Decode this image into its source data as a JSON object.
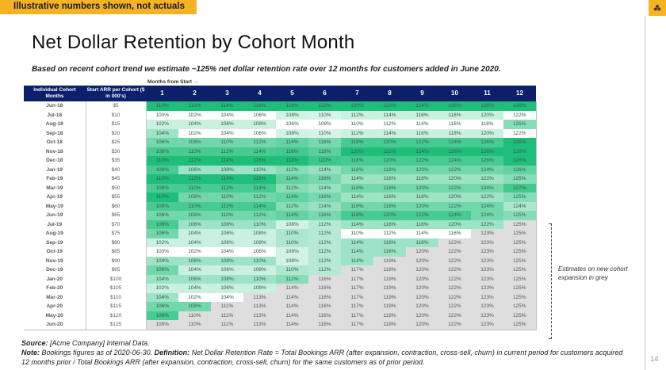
{
  "banner": {
    "text": "Illustrative numbers shown, not actuals"
  },
  "logo": {
    "text": "⁂",
    "icon": "brand-logo-icon"
  },
  "title": "Net Dollar Retention by Cohort Month",
  "subtitle": "Based on recent cohort trend we estimate ~125% net dollar retention rate over 12 months for customers added in June 2020.",
  "months_label": "Months from Start →",
  "colors": {
    "header_bg": "#0b1f6b",
    "banner": "#f5b324",
    "estimate_grey": "#dedede",
    "green_dark": "#1fbf7a",
    "green_light": "#e9f7f0"
  },
  "table": {
    "headers": {
      "cohort": "Individual Cohort Months",
      "arr": "Start ARR per Cohort ($ in 000's)",
      "months": [
        "1",
        "2",
        "3",
        "4",
        "5",
        "6",
        "7",
        "8",
        "9",
        "10",
        "11",
        "12"
      ]
    },
    "rows": [
      {
        "cohort": "Jun-18",
        "arr": "$5",
        "values": [
          "110%",
          "112%",
          "114%",
          "116%",
          "118%",
          "122%",
          "120%",
          "122%",
          "124%",
          "126%",
          "128%",
          "128%"
        ],
        "estimate_from": 13
      },
      {
        "cohort": "Jul-18",
        "arr": "$10",
        "values": [
          "100%",
          "102%",
          "104%",
          "106%",
          "108%",
          "110%",
          "112%",
          "114%",
          "116%",
          "118%",
          "120%",
          "122%"
        ],
        "estimate_from": 13
      },
      {
        "cohort": "Aug-18",
        "arr": "$15",
        "values": [
          "102%",
          "104%",
          "106%",
          "108%",
          "106%",
          "108%",
          "110%",
          "112%",
          "114%",
          "116%",
          "118%",
          "125%"
        ],
        "estimate_from": 13
      },
      {
        "cohort": "Sep-18",
        "arr": "$20",
        "values": [
          "104%",
          "102%",
          "104%",
          "106%",
          "108%",
          "110%",
          "112%",
          "114%",
          "116%",
          "118%",
          "120%",
          "122%"
        ],
        "estimate_from": 13
      },
      {
        "cohort": "Oct-18",
        "arr": "$25",
        "values": [
          "106%",
          "108%",
          "110%",
          "112%",
          "114%",
          "116%",
          "118%",
          "120%",
          "122%",
          "124%",
          "126%",
          "128%"
        ],
        "estimate_from": 13
      },
      {
        "cohort": "Nov-18",
        "arr": "$30",
        "values": [
          "108%",
          "110%",
          "112%",
          "114%",
          "116%",
          "118%",
          "120%",
          "122%",
          "124%",
          "126%",
          "128%",
          "128%"
        ],
        "estimate_from": 13
      },
      {
        "cohort": "Dec-18",
        "arr": "$35",
        "values": [
          "110%",
          "112%",
          "114%",
          "116%",
          "118%",
          "120%",
          "118%",
          "120%",
          "122%",
          "124%",
          "126%",
          "128%"
        ],
        "estimate_from": 13
      },
      {
        "cohort": "Jan-19",
        "arr": "$40",
        "values": [
          "108%",
          "106%",
          "108%",
          "110%",
          "112%",
          "114%",
          "116%",
          "118%",
          "120%",
          "122%",
          "124%",
          "126%"
        ],
        "estimate_from": 13
      },
      {
        "cohort": "Feb-19",
        "arr": "$45",
        "values": [
          "110%",
          "112%",
          "114%",
          "116%",
          "114%",
          "116%",
          "114%",
          "116%",
          "118%",
          "120%",
          "122%",
          "125%"
        ],
        "estimate_from": 13
      },
      {
        "cohort": "Mar-19",
        "arr": "$50",
        "values": [
          "108%",
          "110%",
          "112%",
          "114%",
          "112%",
          "114%",
          "116%",
          "118%",
          "120%",
          "122%",
          "124%",
          "127%"
        ],
        "estimate_from": 13
      },
      {
        "cohort": "Apr-19",
        "arr": "$55",
        "values": [
          "110%",
          "108%",
          "110%",
          "112%",
          "114%",
          "116%",
          "114%",
          "116%",
          "118%",
          "120%",
          "122%",
          "125%"
        ],
        "estimate_from": 13
      },
      {
        "cohort": "May-19",
        "arr": "$60",
        "values": [
          "108%",
          "110%",
          "112%",
          "114%",
          "112%",
          "114%",
          "116%",
          "118%",
          "120%",
          "122%",
          "124%",
          "124%"
        ],
        "estimate_from": 13
      },
      {
        "cohort": "Jun-19",
        "arr": "$65",
        "values": [
          "106%",
          "108%",
          "110%",
          "112%",
          "114%",
          "116%",
          "118%",
          "120%",
          "122%",
          "124%",
          "124%",
          "125%"
        ],
        "estimate_from": 13
      },
      {
        "cohort": "Jul-19",
        "arr": "$70",
        "values": [
          "108%",
          "106%",
          "108%",
          "110%",
          "108%",
          "112%",
          "114%",
          "116%",
          "118%",
          "120%",
          "122%",
          "125%"
        ],
        "estimate_from": 12
      },
      {
        "cohort": "Aug-19",
        "arr": "$75",
        "values": [
          "106%",
          "104%",
          "106%",
          "108%",
          "110%",
          "112%",
          "110%",
          "112%",
          "114%",
          "116%",
          "123%",
          "125%"
        ],
        "estimate_from": 11
      },
      {
        "cohort": "Sep-19",
        "arr": "$80",
        "values": [
          "102%",
          "104%",
          "106%",
          "108%",
          "110%",
          "112%",
          "114%",
          "116%",
          "118%",
          "122%",
          "123%",
          "125%"
        ],
        "estimate_from": 10
      },
      {
        "cohort": "Oct-19",
        "arr": "$85",
        "values": [
          "100%",
          "102%",
          "104%",
          "106%",
          "108%",
          "112%",
          "114%",
          "116%",
          "120%",
          "122%",
          "123%",
          "125%"
        ],
        "estimate_from": 9
      },
      {
        "cohort": "Nov-19",
        "arr": "$90",
        "values": [
          "104%",
          "106%",
          "108%",
          "110%",
          "108%",
          "112%",
          "114%",
          "119%",
          "120%",
          "122%",
          "123%",
          "125%"
        ],
        "estimate_from": 8
      },
      {
        "cohort": "Dec-19",
        "arr": "$95",
        "values": [
          "106%",
          "104%",
          "106%",
          "108%",
          "110%",
          "112%",
          "117%",
          "119%",
          "120%",
          "122%",
          "123%",
          "125%"
        ],
        "estimate_from": 7
      },
      {
        "cohort": "Jan-20",
        "arr": "$100",
        "values": [
          "104%",
          "106%",
          "108%",
          "110%",
          "112%",
          "116%",
          "117%",
          "119%",
          "120%",
          "122%",
          "123%",
          "125%"
        ],
        "estimate_from": 6
      },
      {
        "cohort": "Feb-20",
        "arr": "$105",
        "values": [
          "102%",
          "104%",
          "106%",
          "108%",
          "114%",
          "116%",
          "117%",
          "119%",
          "120%",
          "122%",
          "123%",
          "125%"
        ],
        "estimate_from": 5
      },
      {
        "cohort": "Mar-20",
        "arr": "$110",
        "values": [
          "104%",
          "102%",
          "104%",
          "113%",
          "114%",
          "116%",
          "117%",
          "119%",
          "120%",
          "122%",
          "123%",
          "125%"
        ],
        "estimate_from": 4
      },
      {
        "cohort": "Apr-20",
        "arr": "$115",
        "values": [
          "106%",
          "108%",
          "111%",
          "113%",
          "114%",
          "116%",
          "117%",
          "119%",
          "120%",
          "122%",
          "123%",
          "125%"
        ],
        "estimate_from": 3
      },
      {
        "cohort": "May-20",
        "arr": "$120",
        "values": [
          "108%",
          "110%",
          "111%",
          "113%",
          "114%",
          "116%",
          "117%",
          "119%",
          "120%",
          "122%",
          "123%",
          "125%"
        ],
        "estimate_from": 2
      },
      {
        "cohort": "Jun-20",
        "arr": "$125",
        "values": [
          "108%",
          "110%",
          "111%",
          "113%",
          "114%",
          "116%",
          "117%",
          "119%",
          "120%",
          "122%",
          "123%",
          "125%"
        ],
        "estimate_from": 1
      }
    ]
  },
  "estimate_note": "Estimates on new cohort expansion in grey",
  "footer": {
    "source_label": "Source:",
    "source_text": " [Acme Company] Internal Data.",
    "note_label": "Note:",
    "note_text": " Bookings figures as of 2020-06-30. ",
    "definition_label": "Definition:",
    "definition_text": " Net Dollar Retention Rate = Total Bookings ARR (after expansion, contraction, cross-sell, churn) in current period for customers acquired 12 months prior / Total Bookings ARR (after expansion, contraction, cross-sell, churn) for the same customers as of prior period."
  },
  "page_number": "14"
}
